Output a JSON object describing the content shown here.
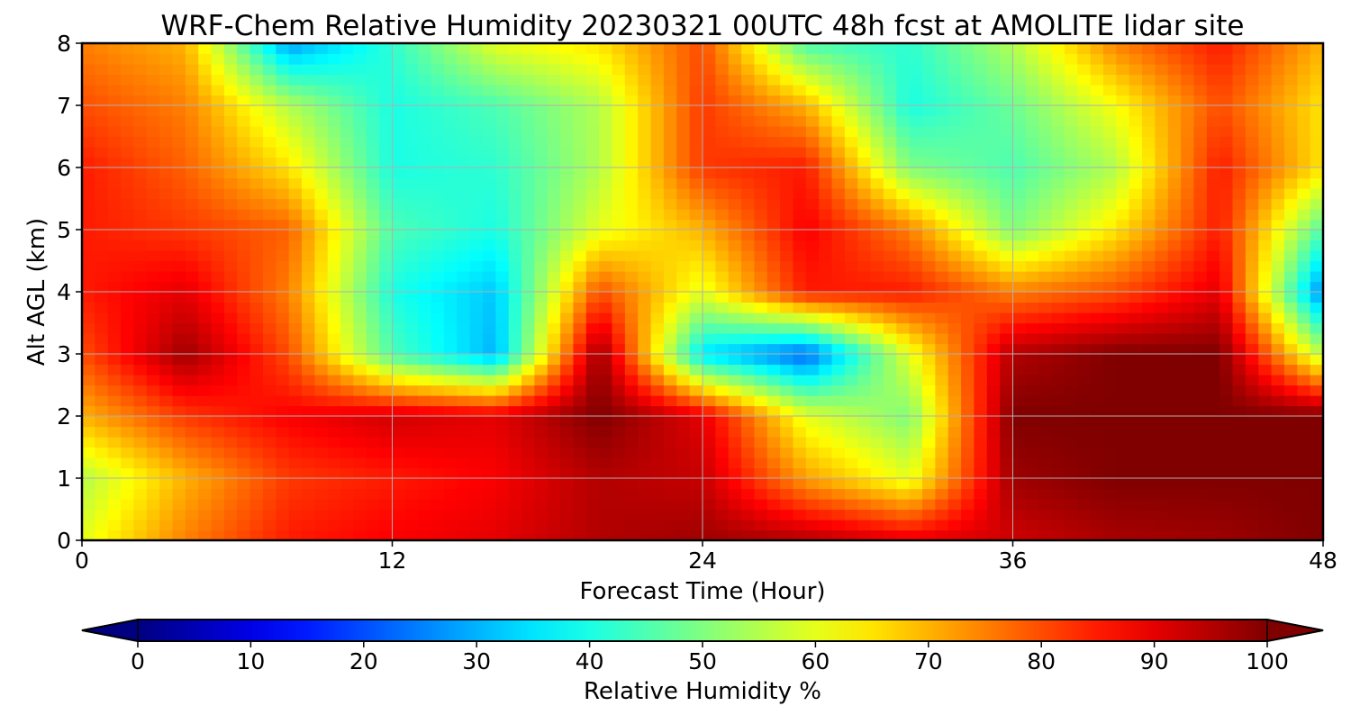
{
  "chart_data": {
    "type": "heatmap",
    "title": "WRF-Chem Relative Humidity 20230321 00UTC 48h fcst at AMOLITE lidar site",
    "xlabel": "Forecast Time (Hour)",
    "ylabel": "Alt AGL (km)",
    "xlim": [
      0,
      48
    ],
    "ylim": [
      0,
      8
    ],
    "xticks": [
      "0",
      "12",
      "24",
      "36",
      "48"
    ],
    "yticks": [
      "0",
      "1",
      "2",
      "3",
      "4",
      "5",
      "6",
      "7",
      "8"
    ],
    "grid": true,
    "colormap": "jet",
    "colorbar": {
      "label": "Relative Humidity %",
      "range": [
        0,
        100
      ],
      "extend": "both",
      "ticks": [
        "0",
        "10",
        "20",
        "30",
        "40",
        "50",
        "60",
        "70",
        "80",
        "90",
        "100"
      ]
    },
    "x": [
      0,
      4,
      8,
      12,
      16,
      20,
      24,
      28,
      32,
      36,
      40,
      44,
      48
    ],
    "y": [
      0,
      1,
      2,
      3,
      4,
      5,
      6,
      7,
      8
    ],
    "z": [
      [
        60,
        75,
        85,
        88,
        90,
        95,
        97,
        95,
        90,
        92,
        96,
        97,
        100
      ],
      [
        55,
        70,
        82,
        85,
        88,
        95,
        93,
        72,
        60,
        97,
        100,
        100,
        100
      ],
      [
        70,
        82,
        88,
        92,
        90,
        100,
        90,
        60,
        50,
        100,
        100,
        100,
        100
      ],
      [
        80,
        97,
        80,
        45,
        30,
        98,
        35,
        22,
        60,
        95,
        100,
        100,
        55
      ],
      [
        85,
        90,
        75,
        40,
        32,
        80,
        60,
        85,
        85,
        75,
        80,
        90,
        25
      ],
      [
        85,
        82,
        78,
        45,
        40,
        60,
        70,
        88,
        75,
        50,
        65,
        85,
        45
      ],
      [
        85,
        78,
        65,
        40,
        42,
        55,
        82,
        85,
        50,
        45,
        55,
        85,
        65
      ],
      [
        80,
        75,
        55,
        40,
        45,
        55,
        82,
        70,
        40,
        48,
        62,
        80,
        65
      ],
      [
        75,
        70,
        28,
        42,
        60,
        65,
        80,
        45,
        42,
        55,
        75,
        85,
        70
      ]
    ]
  }
}
